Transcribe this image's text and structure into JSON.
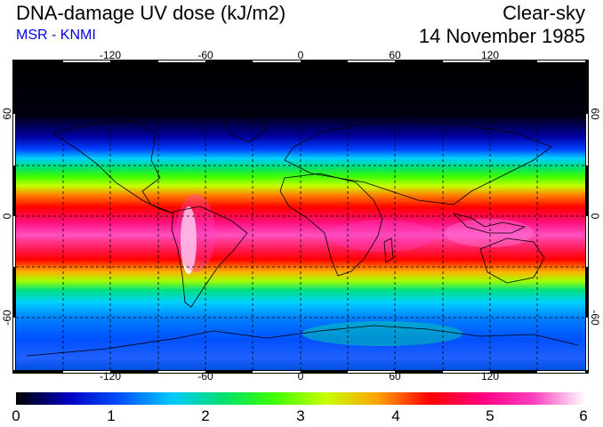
{
  "header": {
    "title": "DNA-damage UV dose (kJ/m2)",
    "subtitle": "MSR - KNMI",
    "condition": "Clear-sky",
    "date": "14 November 1985"
  },
  "axes": {
    "lon_ticks": [
      "-120",
      "-60",
      "0",
      "60",
      "120"
    ],
    "lat_ticks": [
      "60",
      "0",
      "-60"
    ]
  },
  "colorbar": {
    "labels": [
      "0",
      "1",
      "2",
      "3",
      "4",
      "5",
      "6"
    ]
  },
  "colors": {
    "stops": [
      "#000000",
      "#0000c0",
      "#0050ff",
      "#00c8ff",
      "#00e070",
      "#40ff00",
      "#c8ff00",
      "#ffa000",
      "#ff0000",
      "#ff0080",
      "#ff40c0",
      "#ffffff"
    ]
  }
}
